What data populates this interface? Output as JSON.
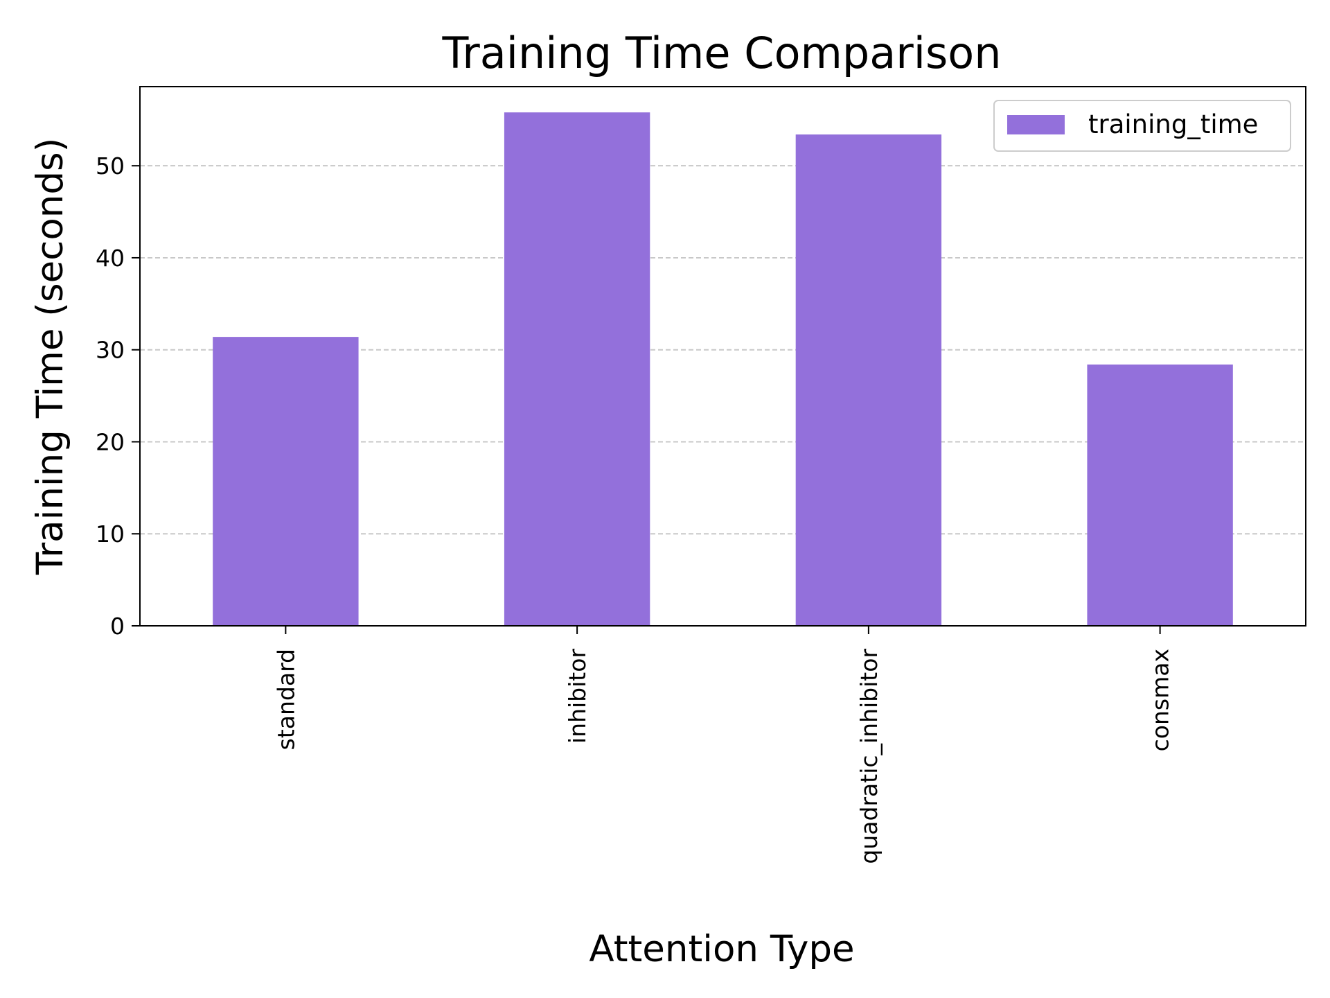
{
  "chart_data": {
    "type": "bar",
    "title": "Training Time Comparison",
    "xlabel": "Attention Type",
    "ylabel": "Training Time (seconds)",
    "categories": [
      "standard",
      "inhibitor",
      "quadratic_inhibitor",
      "consmax"
    ],
    "series": [
      {
        "name": "training_time",
        "values": [
          31.4,
          55.8,
          53.4,
          28.4
        ],
        "color": "#9370db"
      }
    ],
    "ylim": [
      0,
      58.6
    ],
    "yticks": [
      0,
      10,
      20,
      30,
      40,
      50
    ],
    "grid": {
      "y": true,
      "x": false,
      "color": "#c8c8c8",
      "style": "dashed"
    },
    "legend": {
      "position": "top-right"
    }
  }
}
